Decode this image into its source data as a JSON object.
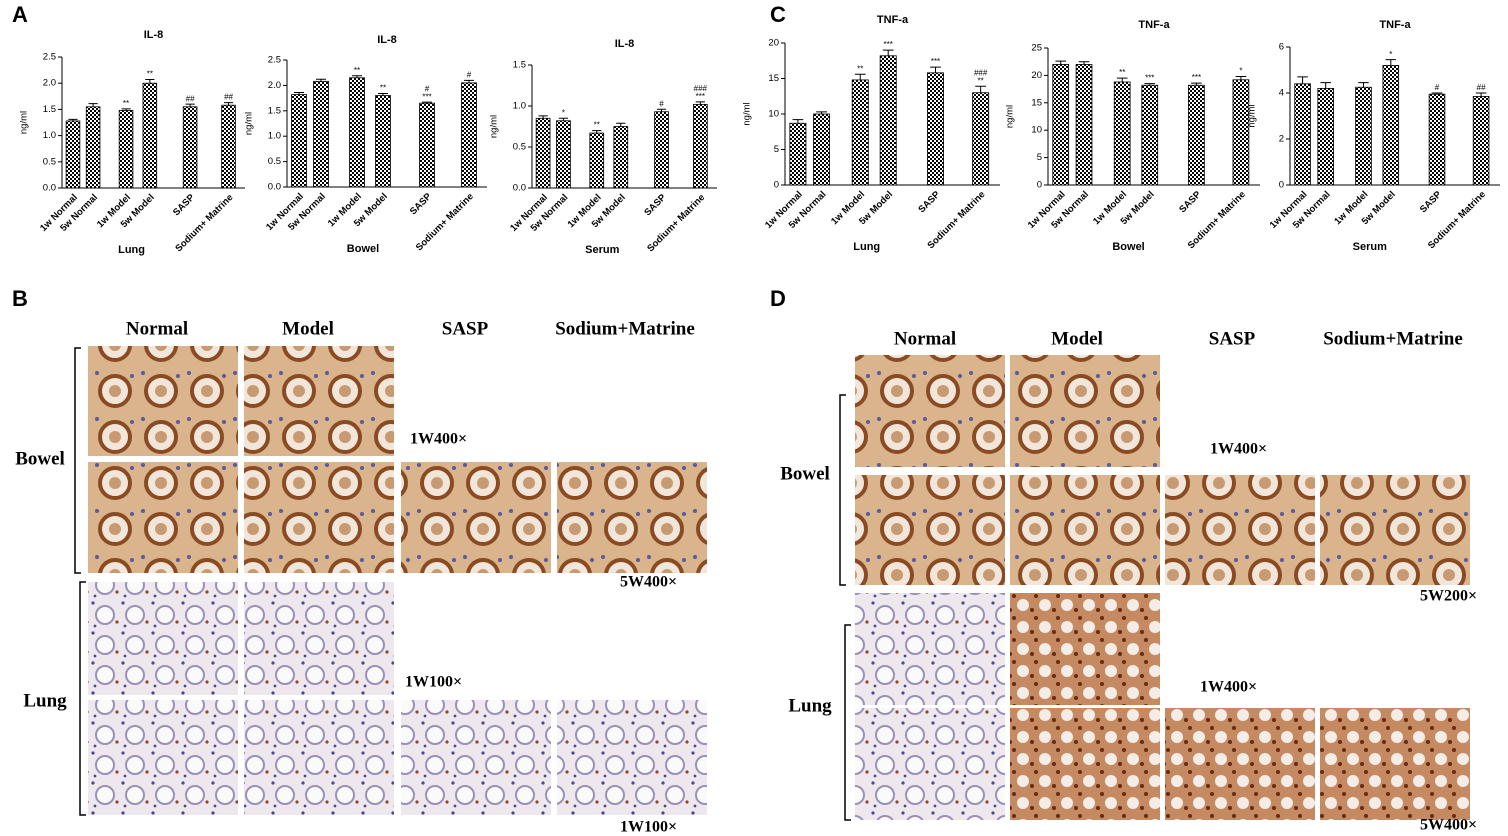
{
  "panel_labels": [
    "A",
    "B",
    "C",
    "D"
  ],
  "chart_data": [
    {
      "type": "bar",
      "title": "IL-8",
      "ylabel": "ng/ml",
      "xlabel": "Lung",
      "categories": [
        "1w Normal",
        "5w Normal",
        "1w Model",
        "5w Model",
        "SASP",
        "Sodium+ Matrine"
      ],
      "values": [
        1.28,
        1.55,
        1.48,
        2.0,
        1.55,
        1.58
      ],
      "errors": [
        0.03,
        0.06,
        0.03,
        0.07,
        0.05,
        0.05
      ],
      "annotations": [
        [],
        [],
        [
          "**"
        ],
        [
          "**"
        ],
        [
          "##"
        ],
        [
          "##"
        ]
      ],
      "ylim": [
        0,
        2.5
      ],
      "yticks": [
        {
          "value": 0,
          "label": "0.0"
        },
        0.5,
        {
          "value": 1,
          "label": "1.0"
        },
        1.5,
        {
          "value": 2,
          "label": "2.0"
        },
        2.5
      ]
    },
    {
      "type": "bar",
      "title": "IL-8",
      "ylabel": "ng/ml",
      "xlabel": "Bowel",
      "categories": [
        "1w Normal",
        "5w Normal",
        "1w Model",
        "5w Model",
        "SASP",
        "Sodium+ Matrine"
      ],
      "values": [
        1.82,
        2.08,
        2.15,
        1.8,
        1.65,
        2.05
      ],
      "errors": [
        0.04,
        0.04,
        0.04,
        0.04,
        0.02,
        0.05
      ],
      "annotations": [
        [],
        [],
        [
          "**"
        ],
        [
          "**"
        ],
        [
          "#",
          "***"
        ],
        [
          "#"
        ]
      ],
      "ylim": [
        0,
        2.5
      ],
      "yticks": [
        {
          "value": 0,
          "label": "0.0"
        },
        0.5,
        {
          "value": 1,
          "label": "1.0"
        },
        1.5,
        {
          "value": 2,
          "label": "2.0"
        },
        2.5
      ]
    },
    {
      "type": "bar",
      "title": "IL-8",
      "ylabel": "ng/ml",
      "xlabel": "Serum",
      "categories": [
        "1w Normal",
        "5w Normal",
        "1w Model",
        "5w Model",
        "SASP",
        "Sodium+ Matrine"
      ],
      "values": [
        0.85,
        0.82,
        0.67,
        0.75,
        0.93,
        1.02
      ],
      "errors": [
        0.03,
        0.03,
        0.03,
        0.04,
        0.03,
        0.03
      ],
      "annotations": [
        [],
        [
          "*"
        ],
        [
          "**"
        ],
        [],
        [
          "#"
        ],
        [
          "###",
          "***"
        ]
      ],
      "ylim": [
        0,
        1.5
      ],
      "yticks": [
        {
          "value": 0,
          "label": "0.0"
        },
        0.5,
        {
          "value": 1,
          "label": "1.0"
        },
        1.5
      ]
    },
    {
      "type": "bar",
      "title": "TNF-a",
      "ylabel": "ng/ml",
      "xlabel": "Lung",
      "categories": [
        "1w Normal",
        "5w Normal",
        "1w Model",
        "5w Model",
        "SASP",
        "Sodium+ Matrine"
      ],
      "values": [
        8.7,
        10,
        14.8,
        18.2,
        15.8,
        13
      ],
      "errors": [
        0.5,
        0.3,
        0.8,
        0.8,
        0.8,
        0.9
      ],
      "annotations": [
        [],
        [],
        [
          "**"
        ],
        [
          "***"
        ],
        [
          "***"
        ],
        [
          "###",
          "**"
        ]
      ],
      "ylim": [
        0,
        20
      ],
      "yticks": [
        0,
        5,
        10,
        15,
        20
      ]
    },
    {
      "type": "bar",
      "title": "TNF-a",
      "ylabel": "ng/ml",
      "xlabel": "Bowel",
      "categories": [
        "1w Normal",
        "5w Normal",
        "1w Model",
        "5w Model",
        "SASP",
        "Sodium+ Matrine"
      ],
      "values": [
        22,
        22,
        18.8,
        18.2,
        18.2,
        19.2
      ],
      "errors": [
        0.6,
        0.5,
        0.7,
        0.3,
        0.4,
        0.6
      ],
      "annotations": [
        [],
        [],
        [
          "**"
        ],
        [
          "***"
        ],
        [
          "***"
        ],
        [
          "*"
        ]
      ],
      "ylim": [
        0,
        25
      ],
      "yticks": [
        0,
        5,
        10,
        15,
        20,
        25
      ]
    },
    {
      "type": "bar",
      "title": "TNF-a",
      "ylabel": "ng/ml",
      "xlabel": "Serum",
      "categories": [
        "1w Normal",
        "5w Normal",
        "1w Model",
        "5w Model",
        "SASP",
        "Sodium+ Matrine"
      ],
      "values": [
        4.4,
        4.2,
        4.25,
        5.2,
        3.95,
        3.85
      ],
      "errors": [
        0.3,
        0.25,
        0.2,
        0.25,
        0.05,
        0.15
      ],
      "annotations": [
        [],
        [],
        [],
        [
          "*"
        ],
        [
          "#"
        ],
        [
          "##"
        ]
      ],
      "ylim": [
        0,
        6
      ],
      "yticks": [
        0,
        2,
        4,
        6
      ]
    }
  ],
  "micrographs": [
    {
      "columns": [
        "Normal",
        "Model",
        "SASP",
        "Sodium+Matrine"
      ],
      "tissues": [
        "Bowel",
        "Lung"
      ],
      "magnifications": [
        "1W400×",
        "5W400×",
        "1W100×",
        "1W100×"
      ]
    },
    {
      "columns": [
        "Normal",
        "Model",
        "SASP",
        "Sodium+Matrine"
      ],
      "tissues": [
        "Bowel",
        "Lung"
      ],
      "magnifications": [
        "1W400×",
        "5W200×",
        "1W400×",
        "5W400×"
      ]
    }
  ]
}
